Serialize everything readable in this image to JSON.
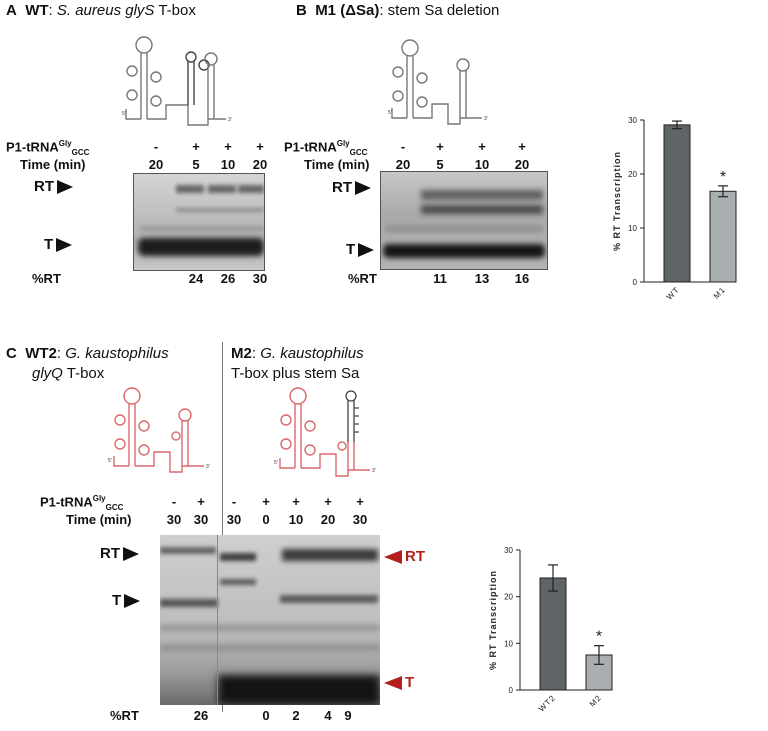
{
  "panelA": {
    "letter": "A",
    "title_bold": "WT",
    "title_colon": ": ",
    "title_italic": "S. aureus glyS",
    "title_rest": " T-box",
    "row1_label": "P1-tRNA",
    "row1_sup": "Gly",
    "row1_sub": "GCC",
    "row2_label": "Time (min)",
    "treatment": [
      "-",
      "+",
      "+",
      "+"
    ],
    "times": [
      "20",
      "5",
      "10",
      "20"
    ],
    "band_rt": "RT",
    "band_t": "T",
    "pct_label": "%RT",
    "pct_values": [
      "",
      "24",
      "26",
      "30"
    ]
  },
  "panelB": {
    "letter": "B",
    "title_bold": "M1 (ΔSa)",
    "title_rest": ": stem Sa deletion",
    "row1_label": "P1-tRNA",
    "row1_sup": "Gly",
    "row1_sub": "GCC",
    "row2_label": "Time (min)",
    "treatment": [
      "-",
      "+",
      "+",
      "+"
    ],
    "times": [
      "20",
      "5",
      "10",
      "20"
    ],
    "band_rt": "RT",
    "band_t": "T",
    "pct_label": "%RT",
    "pct_values": [
      "",
      "11",
      "13",
      "16"
    ]
  },
  "panelC": {
    "letter": "C",
    "left_title_bold": "WT2",
    "left_title_colon": ": ",
    "left_title_italic": "G. kaustophilus",
    "left_title_line2_italic": "glyQ",
    "left_title_line2_rest": " T-box",
    "right_title_bold": "M2",
    "right_title_colon": ": ",
    "right_title_italic": "G. kaustophilus",
    "right_title_line2": "T-box plus stem Sa",
    "row1_label": "P1-tRNA",
    "row1_sup": "Gly",
    "row1_sub": "GCC",
    "row2_label": "Time (min)",
    "treatment": [
      "-",
      "+",
      "-",
      "+",
      "+",
      "+",
      "+"
    ],
    "times": [
      "30",
      "30",
      "30",
      "0",
      "10",
      "20",
      "30"
    ],
    "band_rt": "RT",
    "band_t": "T",
    "pct_label": "%RT",
    "pct_values": [
      "",
      "26",
      "",
      "0",
      "2",
      "4",
      "9"
    ]
  },
  "structure_labels": {
    "five": "5'",
    "three": "3'"
  },
  "chart_data": [
    {
      "type": "bar",
      "categories": [
        "WT",
        "M1"
      ],
      "values": [
        29.1,
        16.8
      ],
      "errors": [
        0.7,
        1.0
      ],
      "ylabel": "% RT Transcription",
      "ylim": [
        0,
        30
      ],
      "yticks": [
        "0",
        "10",
        "20",
        "30"
      ],
      "annotation": "*",
      "colors": [
        "#5f6466",
        "#a9aeb0"
      ]
    },
    {
      "type": "bar",
      "categories": [
        "WT2",
        "M2"
      ],
      "values": [
        24.0,
        7.5
      ],
      "errors": [
        2.8,
        2.0
      ],
      "ylabel": "% RT Transcription",
      "ylim": [
        0,
        30
      ],
      "yticks": [
        "0",
        "10",
        "20",
        "30"
      ],
      "annotation": "*",
      "colors": [
        "#5f6466",
        "#a9aeb0"
      ]
    }
  ]
}
